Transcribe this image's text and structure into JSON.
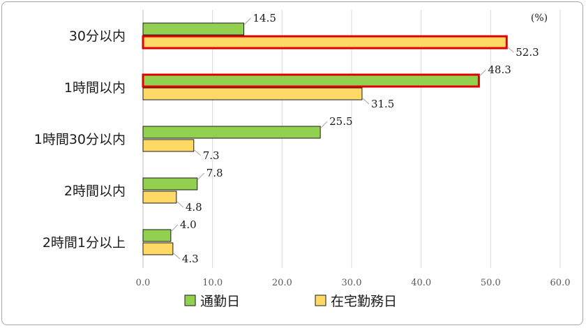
{
  "chart_data": {
    "type": "bar",
    "orientation": "horizontal",
    "unit_label": "(%)",
    "categories": [
      "30分以内",
      "1時間以内",
      "1時間30分以内",
      "2時間以内",
      "2時間1分以上"
    ],
    "series": [
      {
        "name": "通勤日",
        "values": [
          14.5,
          48.3,
          25.5,
          7.8,
          4.0
        ],
        "color": "#92d050",
        "highlight_index": 1
      },
      {
        "name": "在宅勤務日",
        "values": [
          52.3,
          31.5,
          7.3,
          4.8,
          4.3
        ],
        "color": "#ffd966",
        "highlight_index": 0
      }
    ],
    "xlim": [
      0,
      60
    ],
    "xticks": [
      "0.0",
      "10.0",
      "20.0",
      "30.0",
      "40.0",
      "50.0",
      "60.0"
    ],
    "grid": true,
    "highlight_color": "#e00000",
    "legend_position": "bottom"
  }
}
